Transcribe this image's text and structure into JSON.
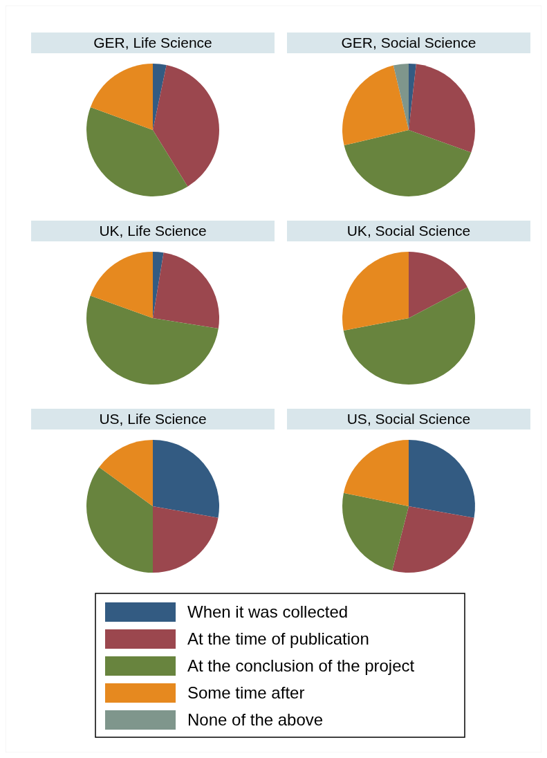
{
  "chart_data": [
    {
      "type": "pie",
      "title": "GER, Life Science",
      "categories": [
        "When it was collected",
        "At the time of publication",
        "At the conclusion of the project",
        "Some time after",
        "None of the above"
      ],
      "values": [
        3.3,
        37.9,
        39.4,
        19.4,
        0
      ],
      "colors": [
        "#335b82",
        "#9b474e",
        "#68843e",
        "#e6891f",
        "#7f968c"
      ],
      "legend": "bottom"
    },
    {
      "type": "pie",
      "title": "GER, Social Science",
      "categories": [
        null,
        null,
        null,
        null,
        null
      ],
      "values": [
        1.8,
        28.7,
        40.8,
        25,
        3.7
      ],
      "colors": [
        "#335b82",
        "#9b474e",
        "#68843e",
        "#e6891f",
        "#7f968c"
      ]
    },
    {
      "type": "pie",
      "title": "UK, Life Science",
      "categories": [
        null,
        null,
        null,
        null
      ],
      "values": [
        2.6,
        24.9,
        53,
        19.5
      ],
      "colors": [
        "#335b82",
        "#9b474e",
        "#68843e",
        "#e6891f"
      ]
    },
    {
      "type": "pie",
      "title": "UK, Social Science",
      "categories": [
        null,
        null,
        null,
        null
      ],
      "values": [
        0,
        17.3,
        54.7,
        28
      ],
      "colors": [
        "#335b82",
        "#9b474e",
        "#68843e",
        "#e6891f"
      ]
    },
    {
      "type": "pie",
      "title": "US, Life Science",
      "categories": [
        null,
        null,
        null,
        null
      ],
      "values": [
        27.8,
        22.2,
        35,
        15
      ],
      "colors": [
        "#335b82",
        "#9b474e",
        "#68843e",
        "#e6891f"
      ]
    },
    {
      "type": "pie",
      "title": "US, Social Science",
      "categories": [
        null,
        null,
        null,
        null
      ],
      "values": [
        27.8,
        26.2,
        24.2,
        21.8
      ],
      "colors": [
        "#335b82",
        "#9b474e",
        "#68843e",
        "#e6891f"
      ]
    }
  ]
}
